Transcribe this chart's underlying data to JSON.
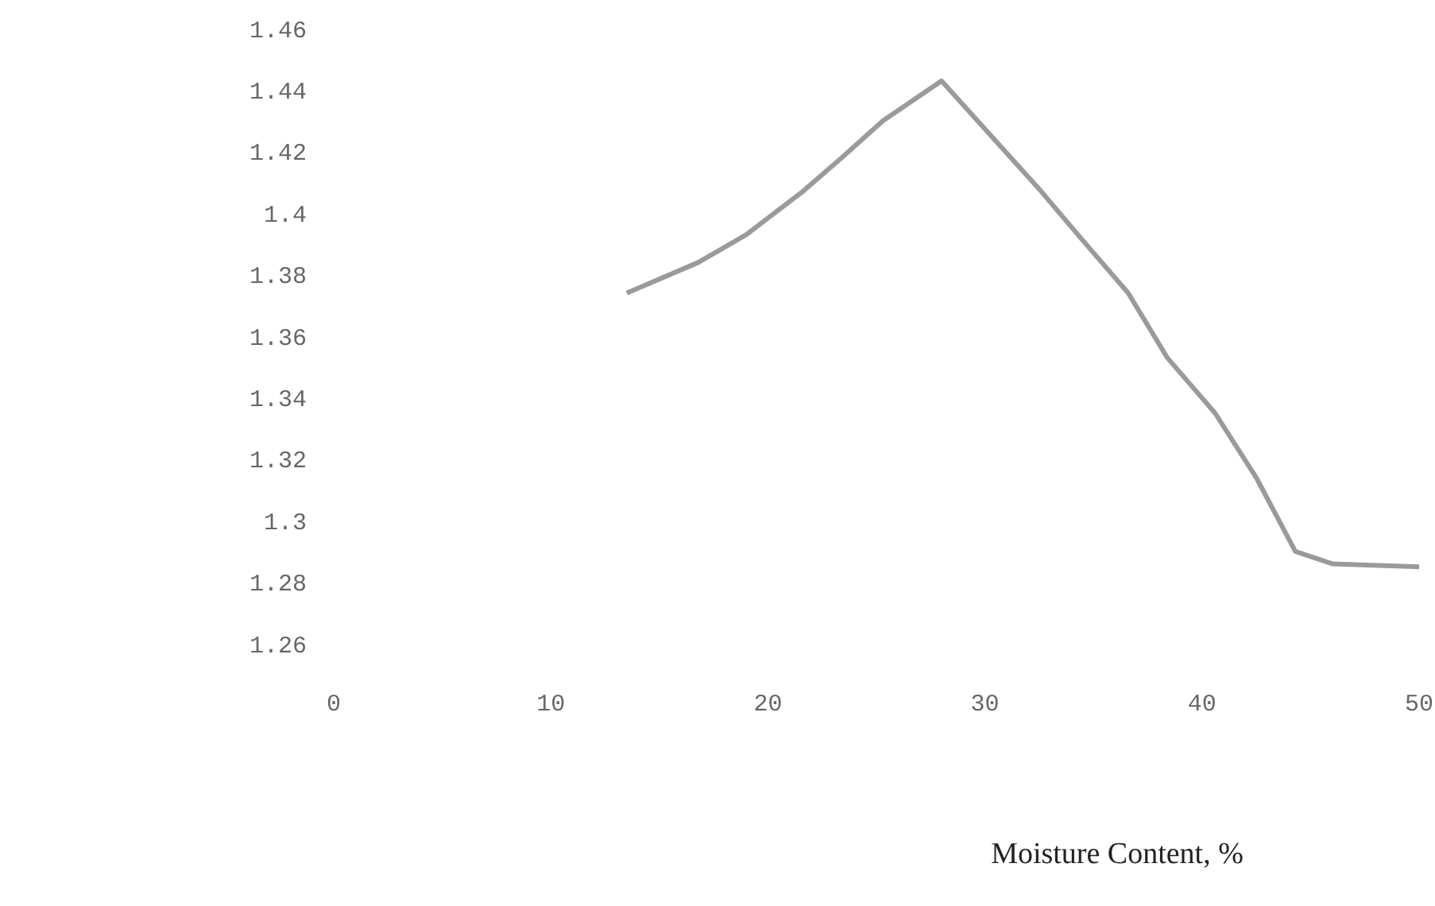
{
  "chart_data": {
    "type": "line",
    "xlabel": "Moisture Content, %",
    "x": [
      13.5,
      16.8,
      19,
      21.6,
      23.4,
      25.3,
      28,
      32.6,
      34.4,
      36.6,
      38.4,
      40.6,
      42.5,
      44.3,
      46,
      50
    ],
    "series": [
      {
        "color": "#9a9a9a",
        "values": [
          1.374,
          1.384,
          1.393,
          1.407,
          1.418,
          1.43,
          1.443,
          1.407,
          1.392,
          1.374,
          1.353,
          1.335,
          1.314,
          1.29,
          1.286,
          1.285
        ]
      }
    ],
    "xlim": [
      0,
      50
    ],
    "xticks": [
      0,
      10,
      20,
      30,
      40,
      50
    ],
    "ylim": [
      1.26,
      1.46
    ],
    "yticks": [
      1.26,
      1.28,
      1.3,
      1.32,
      1.34,
      1.36,
      1.38,
      1.4,
      1.42,
      1.44,
      1.46
    ],
    "marker": "none",
    "line_style": "solid"
  }
}
